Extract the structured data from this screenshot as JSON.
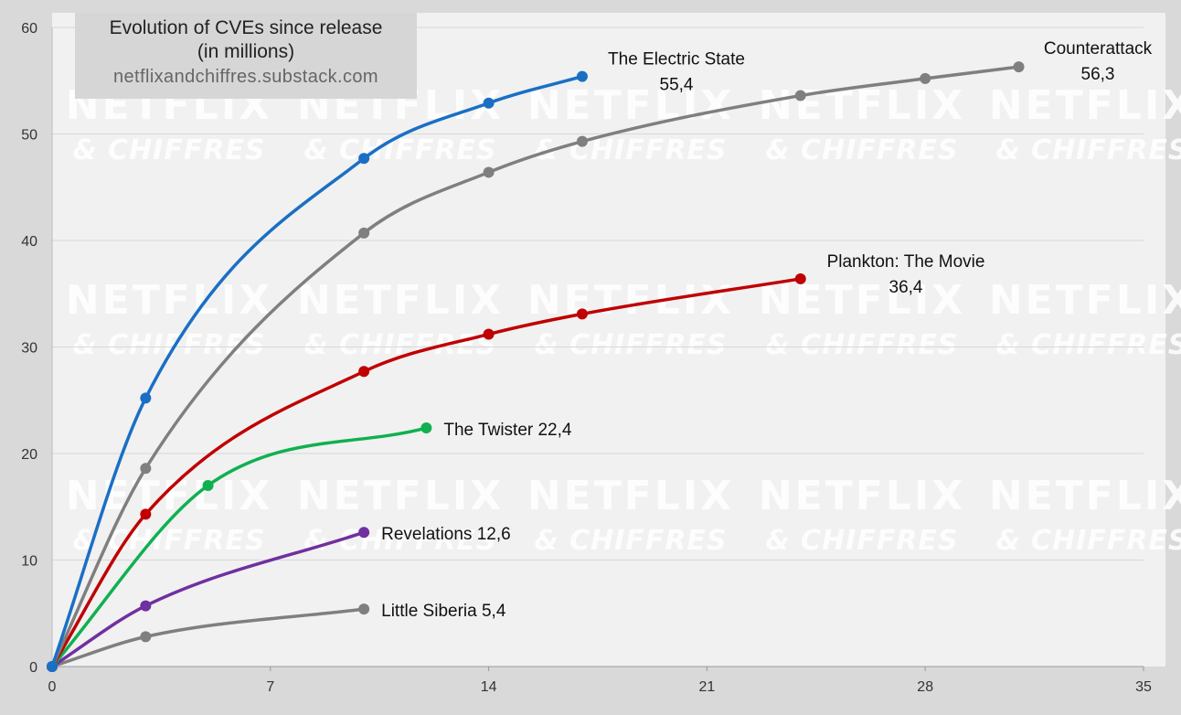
{
  "chart_data": {
    "type": "line",
    "title": "Evolution of CVEs since release",
    "subtitle": "(in millions)",
    "source": "netflixandchiffres.substack.com",
    "watermark": [
      "NETFLIX",
      "& CHIFFRES"
    ],
    "xlim": [
      0,
      35
    ],
    "ylim": [
      0,
      60
    ],
    "xticks": [
      0,
      7,
      14,
      21,
      28,
      35
    ],
    "yticks": [
      0,
      10,
      20,
      30,
      40,
      50,
      60
    ],
    "grid": "horizontal",
    "colors": {
      "background": "#d9d9d9",
      "plot": "#f1f1f1",
      "grid": "#d8d8d8"
    },
    "series": [
      {
        "name": "The Electric State",
        "label": "The Electric State",
        "value_label": "55,4",
        "color": "#1a6fc4",
        "points": [
          [
            0,
            0
          ],
          [
            3,
            25.2
          ],
          [
            10,
            47.7
          ],
          [
            14,
            52.9
          ],
          [
            17,
            55.4
          ]
        ]
      },
      {
        "name": "Counterattack",
        "label": "Counterattack",
        "value_label": "56,3",
        "color": "#7f7f7f",
        "points": [
          [
            0,
            0
          ],
          [
            3,
            18.6
          ],
          [
            10,
            40.7
          ],
          [
            14,
            46.4
          ],
          [
            17,
            49.3
          ],
          [
            24,
            53.6
          ],
          [
            28,
            55.2
          ],
          [
            31,
            56.3
          ]
        ]
      },
      {
        "name": "Plankton: The Movie",
        "label": "Plankton: The Movie",
        "value_label": "36,4",
        "color": "#c00000",
        "points": [
          [
            0,
            0
          ],
          [
            3,
            14.3
          ],
          [
            10,
            27.7
          ],
          [
            14,
            31.2
          ],
          [
            17,
            33.1
          ],
          [
            24,
            36.4
          ]
        ]
      },
      {
        "name": "The Twister",
        "label": "The Twister 22,4",
        "color": "#10b050",
        "points": [
          [
            0,
            0
          ],
          [
            5,
            17.0
          ],
          [
            12,
            22.4
          ]
        ]
      },
      {
        "name": "Revelations",
        "label": "Revelations 12,6",
        "color": "#7030a0",
        "points": [
          [
            0,
            0
          ],
          [
            3,
            5.7
          ],
          [
            10,
            12.6
          ]
        ]
      },
      {
        "name": "Little Siberia",
        "label": "Little Siberia 5,4",
        "color": "#7f7f7f",
        "points": [
          [
            0,
            0
          ],
          [
            3,
            2.8
          ],
          [
            10,
            5.4
          ]
        ]
      }
    ]
  }
}
